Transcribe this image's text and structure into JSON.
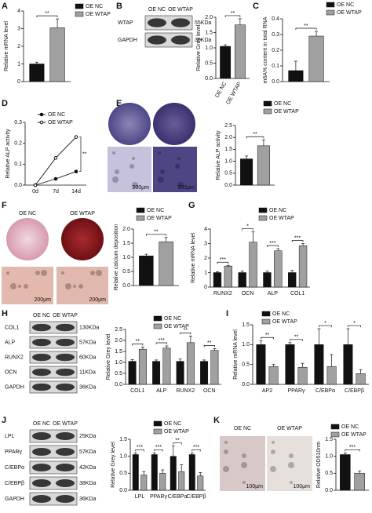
{
  "panels": [
    {
      "letter": "A"
    },
    {
      "letter": "B"
    },
    {
      "letter": "C"
    },
    {
      "letter": "D"
    },
    {
      "letter": "E"
    },
    {
      "letter": "F"
    },
    {
      "letter": "G"
    },
    {
      "letter": "H"
    },
    {
      "letter": "I"
    },
    {
      "letter": "J"
    },
    {
      "letter": "K"
    }
  ],
  "blots": [
    {
      "lanes": [
        "OE NC",
        "OE WTAP"
      ],
      "rows": [
        {
          "name": "WTAP",
          "size": "55KDa"
        },
        {
          "name": "GAPDH",
          "size": "36KDa"
        }
      ]
    },
    {
      "lanes": [
        "OE NC",
        "OE WTAP"
      ],
      "rows": [
        {
          "name": "COL1",
          "size": "130KDa"
        },
        {
          "name": "ALP",
          "size": "57KDa"
        },
        {
          "name": "RUNX2",
          "size": "60KDa"
        },
        {
          "name": "OCN",
          "size": "11KDa"
        },
        {
          "name": "GAPDH",
          "size": "36KDa"
        }
      ]
    },
    {
      "lanes": [
        "OE NC",
        "OE WTAP"
      ],
      "rows": [
        {
          "name": "LPL",
          "size": "25KDa"
        },
        {
          "name": "PPARγ",
          "size": "57KDa"
        },
        {
          "name": "C/EBPα",
          "size": "42KDa"
        },
        {
          "name": "C/EBPβ",
          "size": "38KDa"
        },
        {
          "name": "GAPDH",
          "size": "36KDa"
        }
      ]
    }
  ],
  "images": [
    {
      "scale_bars": [
        "200μm",
        "200μm"
      ]
    },
    {
      "lanes": [
        "OE NC",
        "OE WTAP"
      ],
      "scale_bars": [
        "200μm",
        "200μm"
      ]
    },
    {
      "lanes": [
        "OE NC",
        "OE WTAP"
      ],
      "scale_bars": [
        "100μm",
        "100μm"
      ]
    }
  ],
  "chart_data": [
    {
      "type": "bar",
      "ylabel": "Relative mRNA level",
      "ylim": [
        0,
        4
      ],
      "yticks": [
        0,
        1,
        2,
        3,
        4
      ],
      "series": [
        {
          "name": "OE NC",
          "color": "#111111",
          "values": [
            1.0
          ],
          "errors": [
            0.1
          ]
        },
        {
          "name": "OE WTAP",
          "color": "#a0a0a0",
          "values": [
            3.05
          ],
          "errors": [
            0.5
          ]
        }
      ],
      "significance": [
        "**"
      ]
    },
    {
      "type": "bar",
      "ylabel": "Relative Grey level",
      "ylim": [
        0,
        2
      ],
      "yticks": [
        {
          "value": 0,
          "label": "0.0"
        },
        0.5,
        {
          "value": 1,
          "label": "1.0"
        },
        1.5,
        {
          "value": 2,
          "label": "2.0"
        }
      ],
      "categories": [
        "OE NC",
        "OE WTAP"
      ],
      "values": [
        1.05,
        1.75
      ],
      "errors": [
        0.05,
        0.2
      ],
      "colors": [
        "#111111",
        "#a0a0a0"
      ],
      "significance": [
        "**"
      ]
    },
    {
      "type": "bar",
      "ylabel": "m6A% content in total RNA",
      "ylim": [
        0,
        0.4
      ],
      "yticks": [
        {
          "value": 0,
          "label": "0.0"
        },
        0.1,
        0.2,
        0.3,
        0.4
      ],
      "series": [
        {
          "name": "OE NC",
          "color": "#111111",
          "values": [
            0.07
          ],
          "errors": [
            0.06
          ]
        },
        {
          "name": "OE WTAP",
          "color": "#a0a0a0",
          "values": [
            0.29
          ],
          "errors": [
            0.03
          ]
        }
      ],
      "significance": [
        "**"
      ]
    },
    {
      "type": "line",
      "ylabel": "Relative ALP activity",
      "ylim": [
        0,
        0.3
      ],
      "yticks": [
        {
          "value": 0,
          "label": "0.0"
        },
        0.1,
        0.2,
        0.3
      ],
      "categories": [
        "0d",
        "7d",
        "14d"
      ],
      "series": [
        {
          "name": "OE NC",
          "color": "#111111",
          "values": [
            0.0,
            0.03,
            0.065
          ]
        },
        {
          "name": "OE WTAP",
          "color": "#111111",
          "values": [
            0.0,
            0.13,
            0.23
          ]
        }
      ],
      "significance": [
        "**"
      ]
    },
    {
      "type": "bar",
      "ylabel": "Relative ALP activity",
      "ylim": [
        0,
        2.5
      ],
      "yticks": [
        {
          "value": 0,
          "label": "0.0"
        },
        0.5,
        {
          "value": 1,
          "label": "1.0"
        },
        1.5,
        {
          "value": 2,
          "label": "2.0"
        },
        2.5
      ],
      "series": [
        {
          "name": "OE NC",
          "color": "#111111",
          "values": [
            1.1
          ],
          "errors": [
            0.12
          ]
        },
        {
          "name": "OE WTAP",
          "color": "#a0a0a0",
          "values": [
            1.65
          ],
          "errors": [
            0.25
          ]
        }
      ],
      "significance": [
        "**"
      ]
    },
    {
      "type": "bar",
      "ylabel": "Relative calcium deposition",
      "ylim": [
        0,
        2
      ],
      "yticks": [
        {
          "value": 0,
          "label": "0.0"
        },
        0.5,
        {
          "value": 1,
          "label": "1.0"
        },
        1.5,
        {
          "value": 2,
          "label": "2.0"
        }
      ],
      "series": [
        {
          "name": "OE NC",
          "color": "#111111",
          "values": [
            1.05
          ],
          "errors": [
            0.06
          ]
        },
        {
          "name": "OE WTAP",
          "color": "#a0a0a0",
          "values": [
            1.55
          ],
          "errors": [
            0.15
          ]
        }
      ],
      "significance": [
        "**"
      ]
    },
    {
      "type": "bar",
      "ylabel": "Relative mRNA level",
      "ylim": [
        0,
        4
      ],
      "yticks": [
        0,
        1,
        2,
        3,
        4
      ],
      "categories": [
        "RUNX2",
        "OCN",
        "ALP",
        "COL1"
      ],
      "series": [
        {
          "name": "OE NC",
          "color": "#111111",
          "values": [
            1,
            1,
            1,
            1
          ],
          "errors": [
            0.05,
            0.1,
            0.1,
            0.15
          ]
        },
        {
          "name": "OE WTAP",
          "color": "#a0a0a0",
          "values": [
            1.45,
            3.1,
            2.5,
            2.85
          ],
          "errors": [
            0.05,
            0.7,
            0.15,
            0.15
          ]
        }
      ],
      "significance": [
        "***",
        "*",
        "***",
        "***"
      ]
    },
    {
      "type": "bar",
      "ylabel": "Relative Grey level",
      "ylim": [
        0,
        2.5
      ],
      "yticks": [
        {
          "value": 0,
          "label": "0.0"
        },
        0.5,
        {
          "value": 1,
          "label": "1.0"
        },
        1.5,
        {
          "value": 2,
          "label": "2.0"
        },
        2.5
      ],
      "categories": [
        "COL1",
        "ALP",
        "RUNX2",
        "OCN"
      ],
      "series": [
        {
          "name": "OE NC",
          "color": "#111111",
          "values": [
            1.05,
            1.05,
            1.05,
            1.05
          ],
          "errors": [
            0.08,
            0.06,
            0.1,
            0.06
          ]
        },
        {
          "name": "OE WTAP",
          "color": "#a0a0a0",
          "values": [
            1.6,
            1.65,
            1.9,
            1.55
          ],
          "errors": [
            0.1,
            0.1,
            0.3,
            0.08
          ]
        }
      ],
      "significance": [
        "**",
        "***",
        "**",
        "**"
      ]
    },
    {
      "type": "bar",
      "ylabel": "Relative mRNA level",
      "ylim": [
        0,
        1.5
      ],
      "yticks": [
        {
          "value": 0,
          "label": "0.0"
        },
        0.5,
        {
          "value": 1,
          "label": "1.0"
        },
        1.5
      ],
      "categories": [
        "AP2",
        "PPARγ",
        "C/EBPα",
        "C/EBPβ"
      ],
      "series": [
        {
          "name": "OE NC",
          "color": "#111111",
          "values": [
            1,
            1,
            1,
            1
          ],
          "errors": [
            0.1,
            0.05,
            0.4,
            0.4
          ]
        },
        {
          "name": "OE WTAP",
          "color": "#a0a0a0",
          "values": [
            0.45,
            0.43,
            0.45,
            0.27
          ],
          "errors": [
            0.05,
            0.1,
            0.3,
            0.1
          ]
        }
      ],
      "significance": [
        "**",
        "**",
        "*",
        "*"
      ]
    },
    {
      "type": "bar",
      "ylabel": "Relative Grey level",
      "ylim": [
        0,
        1.5
      ],
      "yticks": [
        {
          "value": 0,
          "label": "0.0"
        },
        0.5,
        {
          "value": 1,
          "label": "1.0"
        },
        1.5
      ],
      "categories": [
        "LPL",
        "PPARγ",
        "C/EBPα",
        "C/EBPβ"
      ],
      "series": [
        {
          "name": "OE NC",
          "color": "#111111",
          "values": [
            1.05,
            1.05,
            1.0,
            1.05
          ],
          "errors": [
            0.05,
            0.05,
            0.3,
            0.05
          ]
        },
        {
          "name": "OE WTAP",
          "color": "#a0a0a0",
          "values": [
            0.45,
            0.5,
            0.55,
            0.42
          ],
          "errors": [
            0.1,
            0.1,
            0.2,
            0.1
          ]
        }
      ],
      "significance": [
        "***",
        "***",
        "**",
        "***"
      ]
    },
    {
      "type": "bar",
      "ylabel": "Relative OD510nm",
      "ylim": [
        0,
        1.5
      ],
      "yticks": [
        {
          "value": 0,
          "label": "0.0"
        },
        0.5,
        {
          "value": 1,
          "label": "1.0"
        },
        1.5
      ],
      "series": [
        {
          "name": "OE NC",
          "color": "#111111",
          "values": [
            1.05
          ],
          "errors": [
            0.05
          ]
        },
        {
          "name": "OE WTAP",
          "color": "#a0a0a0",
          "values": [
            0.5
          ],
          "errors": [
            0.07
          ]
        }
      ],
      "significance": [
        "***"
      ]
    }
  ]
}
